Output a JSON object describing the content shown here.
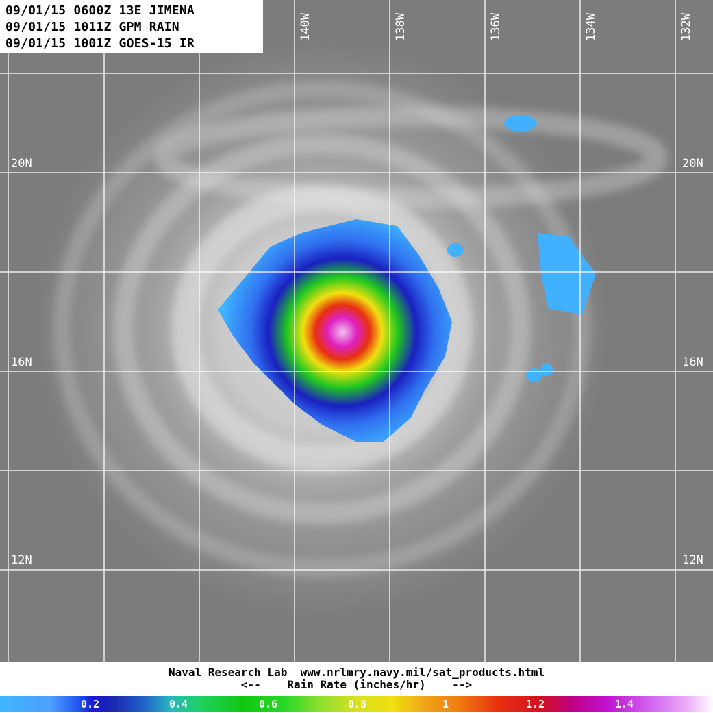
{
  "header": {
    "lines": [
      "09/01/15 0600Z 13E JIMENA",
      "09/01/15 1011Z GPM RAIN",
      "09/01/15 1001Z GOES-15 IR"
    ]
  },
  "map": {
    "longitude_labels": [
      "140W",
      "138W",
      "136W",
      "134W",
      "132W"
    ],
    "latitude_labels": [
      "20N",
      "16N",
      "12N"
    ],
    "colors": {
      "cloud_gray": "#8a8a8a",
      "bright_cloud": "#e8e8e8",
      "grid": "#ffffff"
    }
  },
  "footer": {
    "credit": "Naval Research Lab  www.nrlmry.navy.mil/sat_products.html",
    "scale_title": "<--    Rain Rate (inches/hr)    -->"
  },
  "colorbar": {
    "labels": [
      "0.2",
      "0.4",
      "0.6",
      "0.8",
      "1",
      "1.2",
      "1.4"
    ]
  }
}
